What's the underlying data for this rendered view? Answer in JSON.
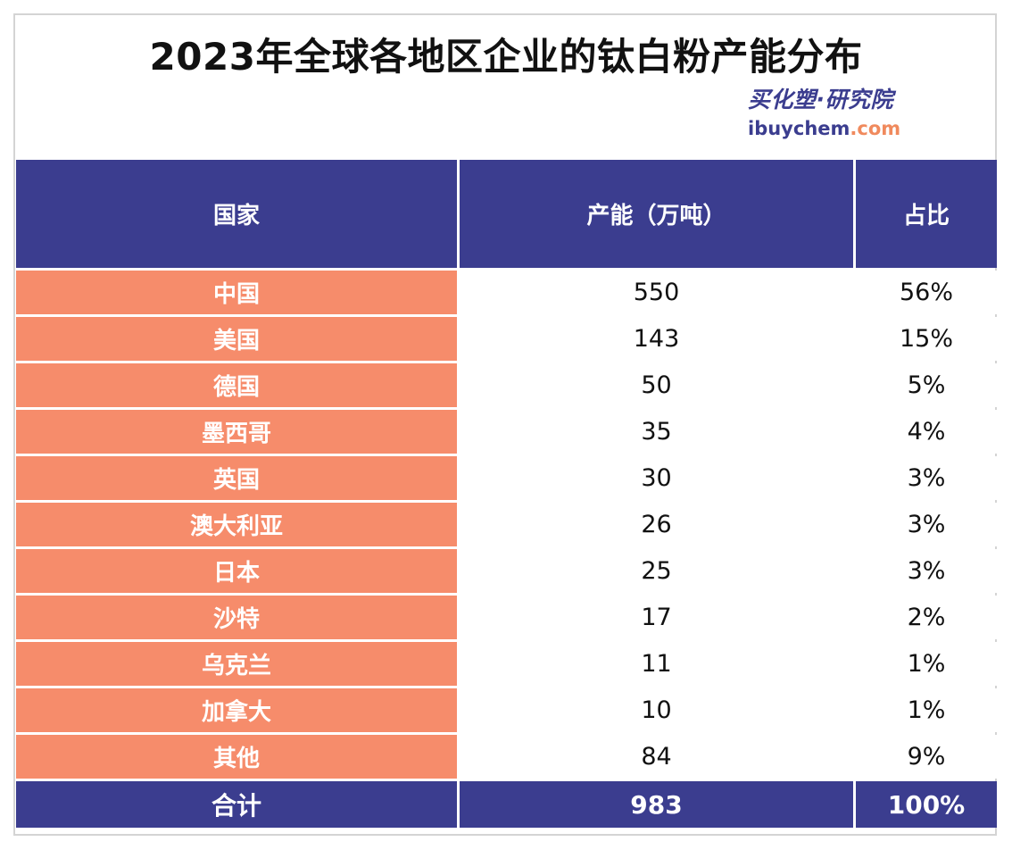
{
  "title": "2023年全球各地区企业的钛白粉产能分布",
  "brand": {
    "cn": "买化塑·研究院",
    "en_prefix": "ibuychem",
    "en_suffix": ".com"
  },
  "colors": {
    "header_bg": "#3b3d8f",
    "country_cell_bg": "#f68c6b",
    "border": "#d4d4d4"
  },
  "table": {
    "headers": [
      "国家",
      "产能（万吨）",
      "占比"
    ],
    "rows": [
      {
        "country": "中国",
        "capacity": "550",
        "share": "56%"
      },
      {
        "country": "美国",
        "capacity": "143",
        "share": "15%"
      },
      {
        "country": "德国",
        "capacity": "50",
        "share": "5%"
      },
      {
        "country": "墨西哥",
        "capacity": "35",
        "share": "4%"
      },
      {
        "country": "英国",
        "capacity": "30",
        "share": "3%"
      },
      {
        "country": "澳大利亚",
        "capacity": "26",
        "share": "3%"
      },
      {
        "country": "日本",
        "capacity": "25",
        "share": "3%"
      },
      {
        "country": "沙特",
        "capacity": "17",
        "share": "2%"
      },
      {
        "country": "乌克兰",
        "capacity": "11",
        "share": "1%"
      },
      {
        "country": "加拿大",
        "capacity": "10",
        "share": "1%"
      },
      {
        "country": "其他",
        "capacity": "84",
        "share": "9%"
      }
    ],
    "total": {
      "label": "合计",
      "capacity": "983",
      "share": "100%"
    }
  }
}
